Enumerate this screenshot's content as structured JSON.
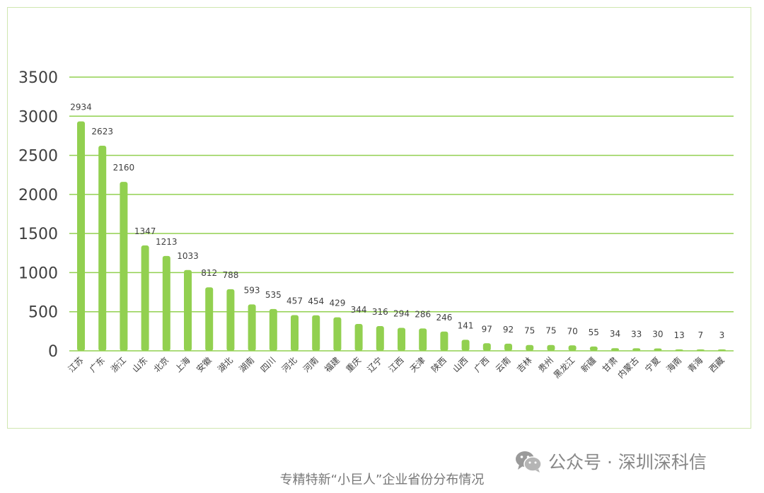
{
  "chart_data": {
    "type": "bar",
    "categories": [
      "江苏",
      "广东",
      "浙江",
      "山东",
      "北京",
      "上海",
      "安徽",
      "湖北",
      "湖南",
      "四川",
      "河北",
      "河南",
      "福建",
      "重庆",
      "辽宁",
      "江西",
      "天津",
      "陕西",
      "山西",
      "广西",
      "云南",
      "吉林",
      "贵州",
      "黑龙江",
      "新疆",
      "甘肃",
      "内蒙古",
      "宁夏",
      "海南",
      "青海",
      "西藏"
    ],
    "values": [
      2934,
      2623,
      2160,
      1347,
      1213,
      1033,
      812,
      788,
      593,
      535,
      457,
      454,
      429,
      344,
      316,
      294,
      286,
      246,
      141,
      97,
      92,
      75,
      75,
      70,
      55,
      34,
      33,
      30,
      13,
      7,
      3
    ],
    "title": "",
    "xlabel": "",
    "ylabel": "",
    "ylim": [
      0,
      3500
    ],
    "yticks": [
      0,
      500,
      1000,
      1500,
      2000,
      2500,
      3000,
      3500
    ],
    "grid": true,
    "colors": {
      "bar": "#92d050",
      "grid": "#92d050",
      "border": "#cfe6b0"
    }
  },
  "caption": "专精特新“小巨人”企业省份分布情况",
  "watermark": {
    "icon": "wechat-icon",
    "text": "公众号 · 深圳深科信"
  }
}
